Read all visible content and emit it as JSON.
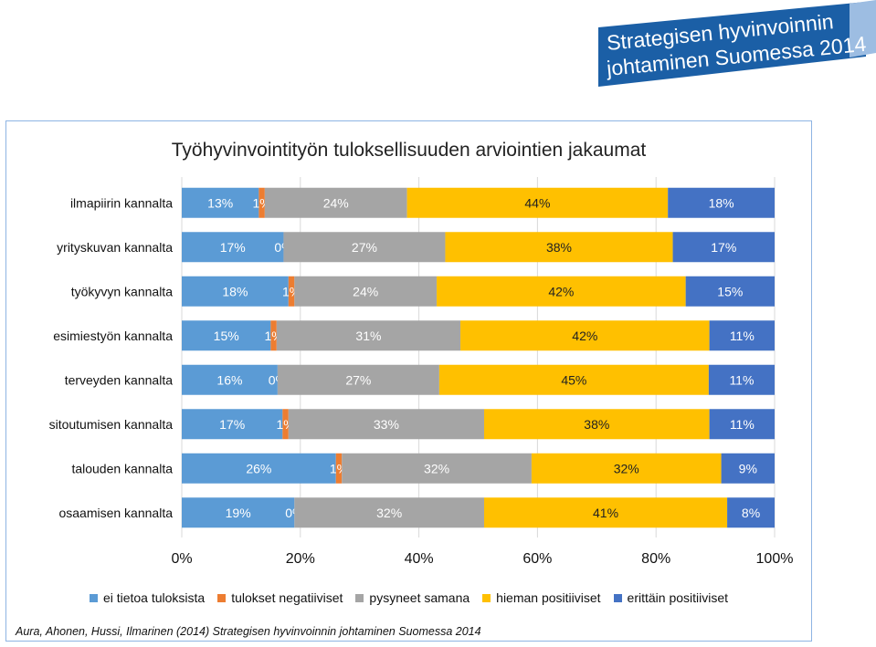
{
  "banner": {
    "line1": "Strategisen hyvinvoinnin",
    "line2": "johtaminen Suomessa 2014",
    "color": "#1b5fa6"
  },
  "citation": "Aura, Ahonen, Hussi, Ilmarinen (2014) Strategisen hyvinvoinnin johtaminen Suomessa 2014",
  "chart_data": {
    "type": "bar",
    "orientation": "horizontal",
    "stacked": "percent",
    "title": "Työhyvinvointityön tuloksellisuuden arviointien jakaumat",
    "categories": [
      "ilmapiirin kannalta",
      "yrityskuvan kannalta",
      "työkyvyn kannalta",
      "esimiestyön kannalta",
      "terveyden kannalta",
      "sitoutumisen kannalta",
      "talouden kannalta",
      "osaamisen kannalta"
    ],
    "series": [
      {
        "name": "ei tietoa tuloksista",
        "color": "#5b9bd5",
        "label_color": "#ffffff",
        "values": [
          13,
          17,
          18,
          15,
          16,
          17,
          26,
          19
        ],
        "labels": [
          "13%",
          "17%",
          "18%",
          "15%",
          "16%",
          "17%",
          "26%",
          "19%"
        ]
      },
      {
        "name": "tulokset negatiiviset",
        "color": "#ed7d31",
        "label_color": "#ffffff",
        "values": [
          1,
          0,
          1,
          1,
          0,
          1,
          1,
          0
        ],
        "labels": [
          "1%",
          "0%",
          "1%",
          "1%",
          "0%",
          "1%",
          "1%",
          "0%"
        ]
      },
      {
        "name": "pysyneet samana",
        "color": "#a5a5a5",
        "label_color": "#ffffff",
        "values": [
          24,
          27,
          24,
          31,
          27,
          33,
          32,
          32
        ],
        "labels": [
          "24%",
          "27%",
          "24%",
          "31%",
          "27%",
          "33%",
          "32%",
          "32%"
        ]
      },
      {
        "name": "hieman positiiviset",
        "color": "#ffc000",
        "label_color": "#222222",
        "values": [
          44,
          38,
          42,
          42,
          45,
          38,
          32,
          41
        ],
        "labels": [
          "44%",
          "38%",
          "42%",
          "42%",
          "45%",
          "38%",
          "32%",
          "41%"
        ]
      },
      {
        "name": "erittäin positiiviset",
        "color": "#4472c4",
        "label_color": "#ffffff",
        "values": [
          18,
          17,
          15,
          11,
          11,
          11,
          9,
          8
        ],
        "labels": [
          "18%",
          "17%",
          "15%",
          "11%",
          "11%",
          "11%",
          "9%",
          "8%"
        ]
      }
    ],
    "xlim": [
      0,
      100
    ],
    "x_ticks": [
      "0%",
      "20%",
      "40%",
      "60%",
      "80%",
      "100%"
    ],
    "grid": true,
    "legend": "bottom"
  }
}
